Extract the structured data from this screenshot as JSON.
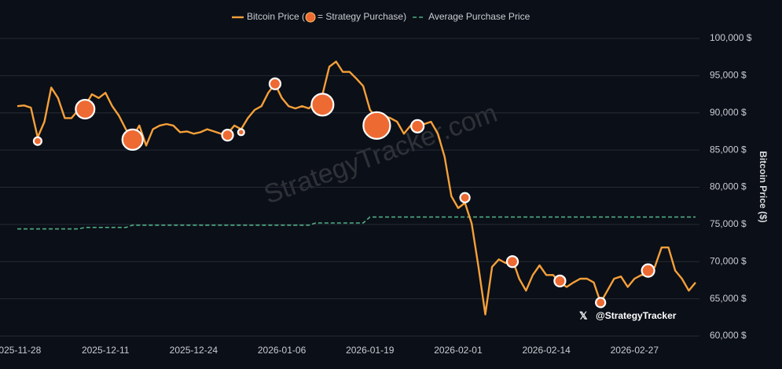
{
  "chart_data": {
    "type": "line",
    "watermark": "StrategyTracker.com",
    "handle": "@StrategyTracker",
    "y_axis_label": "Bitcoin Price ($)",
    "x": [
      "2025-11-28",
      "2025-11-29",
      "2025-11-30",
      "2025-12-01",
      "2025-12-02",
      "2025-12-03",
      "2025-12-04",
      "2025-12-05",
      "2025-12-06",
      "2025-12-07",
      "2025-12-08",
      "2025-12-09",
      "2025-12-10",
      "2025-12-11",
      "2025-12-12",
      "2025-12-13",
      "2025-12-14",
      "2025-12-15",
      "2025-12-16",
      "2025-12-17",
      "2025-12-18",
      "2025-12-19",
      "2025-12-20",
      "2025-12-21",
      "2025-12-22",
      "2025-12-23",
      "2025-12-24",
      "2025-12-25",
      "2025-12-26",
      "2025-12-27",
      "2025-12-28",
      "2025-12-29",
      "2025-12-30",
      "2025-12-31",
      "2026-01-01",
      "2026-01-02",
      "2026-01-03",
      "2026-01-04",
      "2026-01-05",
      "2026-01-06",
      "2026-01-07",
      "2026-01-08",
      "2026-01-09",
      "2026-01-10",
      "2026-01-11",
      "2026-01-12",
      "2026-01-13",
      "2026-01-14",
      "2026-01-15",
      "2026-01-16",
      "2026-01-17",
      "2026-01-18",
      "2026-01-19",
      "2026-01-20",
      "2026-01-21",
      "2026-01-22",
      "2026-01-23",
      "2026-01-24",
      "2026-01-25",
      "2026-01-26",
      "2026-01-27",
      "2026-01-28",
      "2026-01-29",
      "2026-01-30",
      "2026-01-31",
      "2026-02-01",
      "2026-02-02",
      "2026-02-03",
      "2026-02-04",
      "2026-02-05",
      "2026-02-06",
      "2026-02-07",
      "2026-02-08",
      "2026-02-09",
      "2026-02-10",
      "2026-02-11",
      "2026-02-12",
      "2026-02-13",
      "2026-02-14",
      "2026-02-15",
      "2026-02-16",
      "2026-02-17",
      "2026-02-18",
      "2026-02-19",
      "2026-02-20",
      "2026-02-21",
      "2026-02-22",
      "2026-02-23",
      "2026-02-24",
      "2026-02-25",
      "2026-02-26",
      "2026-02-27",
      "2026-02-28",
      "2026-03-01",
      "2026-03-02",
      "2026-03-03",
      "2026-03-04",
      "2026-03-05",
      "2026-03-06",
      "2026-03-07",
      "2026-03-08"
    ],
    "series": [
      {
        "name": "Bitcoin Price (",
        "color": "#f5a03a",
        "dashed": false,
        "values": [
          90900,
          91000,
          90700,
          86700,
          88800,
          93400,
          92000,
          89300,
          89300,
          90400,
          90900,
          92500,
          92000,
          92700,
          90900,
          89600,
          87800,
          86700,
          88300,
          85600,
          87800,
          88300,
          88500,
          88300,
          87400,
          87500,
          87200,
          87400,
          87800,
          87500,
          87200,
          87200,
          88300,
          87800,
          89300,
          90400,
          90900,
          92700,
          93900,
          92000,
          90900,
          90600,
          90900,
          90600,
          91500,
          92500,
          96200,
          96900,
          95500,
          95500,
          94600,
          93600,
          90400,
          89300,
          89600,
          89300,
          88800,
          87200,
          88300,
          88800,
          88500,
          88800,
          87200,
          84100,
          78800,
          77200,
          77900,
          75100,
          69300,
          62900,
          69300,
          70300,
          69800,
          70300,
          67700,
          66100,
          68200,
          69500,
          68200,
          68200,
          67200,
          66600,
          67200,
          67700,
          67700,
          67200,
          64500,
          66100,
          67700,
          68000,
          66600,
          67700,
          68200,
          68200,
          69300,
          71900,
          71900,
          68800,
          67700,
          66100,
          67200
        ]
      },
      {
        "name": "Average Purchase Price",
        "color": "#4fae86",
        "dashed": true,
        "values": [
          74400,
          74400,
          74400,
          74400,
          74400,
          74400,
          74400,
          74400,
          74400,
          74400,
          74600,
          74600,
          74600,
          74600,
          74600,
          74600,
          74600,
          74900,
          74900,
          74900,
          74900,
          74900,
          74900,
          74900,
          74900,
          74900,
          74900,
          74900,
          74900,
          74900,
          74900,
          74900,
          74900,
          74900,
          74900,
          74900,
          74900,
          74900,
          74900,
          74900,
          74900,
          74900,
          74900,
          74900,
          75200,
          75200,
          75200,
          75200,
          75200,
          75200,
          75200,
          75200,
          76000,
          76000,
          76000,
          76000,
          76000,
          76000,
          76000,
          76000,
          76000,
          76000,
          76000,
          76000,
          76000,
          76000,
          76000,
          76000,
          76000,
          76000,
          76000,
          76000,
          76000,
          76000,
          76000,
          76000,
          76000,
          76000,
          76000,
          76000,
          76000,
          76000,
          76000,
          76000,
          76000,
          76000,
          76000,
          76000,
          76000,
          76000,
          76000,
          76000,
          76000,
          76000,
          76000,
          76000,
          76000,
          76000,
          76000,
          76000,
          76000
        ]
      }
    ],
    "purchases": {
      "name": "= Strategy Purchase)",
      "color": "#ee6a33",
      "x": [
        "2025-12-01",
        "2025-12-08",
        "2025-12-15",
        "2025-12-29",
        "2025-12-31",
        "2026-01-05",
        "2026-01-12",
        "2026-01-20",
        "2026-01-26",
        "2026-02-02",
        "2026-02-09",
        "2026-02-16",
        "2026-02-22",
        "2026-03-01"
      ],
      "values": [
        86200,
        90500,
        86400,
        87000,
        87400,
        93900,
        91100,
        88300,
        88200,
        78600,
        70000,
        67400,
        64500,
        68800
      ],
      "sizes": [
        1900,
        11000,
        13000,
        3800,
        1200,
        3800,
        15000,
        22300,
        4900,
        2800,
        3800,
        3800,
        2800,
        4900
      ]
    },
    "xlim": [
      "2025-11-28",
      "2026-03-08"
    ],
    "xticks": [
      "2025-11-28",
      "2025-12-11",
      "2025-12-24",
      "2026-01-06",
      "2026-01-19",
      "2026-02-01",
      "2026-02-14",
      "2026-02-27"
    ],
    "ylim": [
      60000,
      100000
    ],
    "yticks": [
      {
        "value": 60000,
        "label": "60,000 $"
      },
      {
        "value": 65000,
        "label": "65,000 $"
      },
      {
        "value": 70000,
        "label": "70,000 $"
      },
      {
        "value": 75000,
        "label": "75,000 $"
      },
      {
        "value": 80000,
        "label": "80,000 $"
      },
      {
        "value": 85000,
        "label": "85,000 $"
      },
      {
        "value": 90000,
        "label": "90,000 $"
      },
      {
        "value": 95000,
        "label": "95,000 $"
      },
      {
        "value": 100000,
        "label": "100,000 $"
      }
    ],
    "grid": true
  }
}
